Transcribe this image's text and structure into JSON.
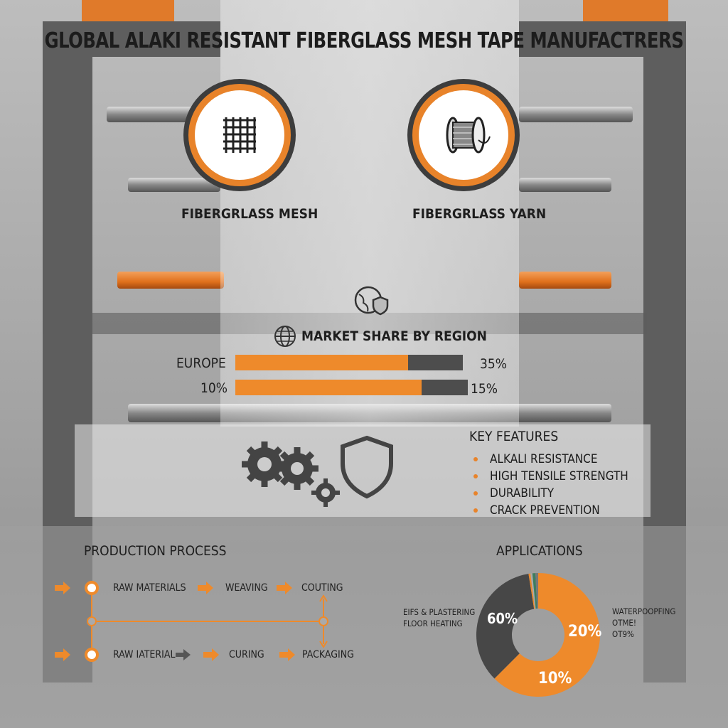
{
  "title": "GLOBAL ALAKI RESISTANT FIBERGLASS MESH TAPE MANUFACTRERS",
  "products": [
    {
      "label": "FIBERGRLASS MESH",
      "icon": "mesh-grid-icon"
    },
    {
      "label": "FIBERGRLASS YARN",
      "icon": "yarn-spool-icon"
    }
  ],
  "market": {
    "title": "MARKET SHARE BY REGION",
    "rows": [
      {
        "label": "EUROPE",
        "fill": 0.76,
        "value": "35%"
      },
      {
        "label": "10%",
        "fill": 0.8,
        "value": "15%"
      }
    ]
  },
  "features": {
    "title": "KEY FEATURES",
    "items": [
      "ALKALI RESISTANCE",
      "HIGH TENSILE STRENGTH",
      "DURABILITY",
      "CRACK PREVENTION"
    ]
  },
  "process": {
    "title": "PRODUCTION PROCESS",
    "row1": [
      "RAW MATERIALS",
      "WEAVING",
      "COUTING"
    ],
    "row2": [
      "RAW IATERIAL",
      "CURING",
      "PACKAGING"
    ]
  },
  "applications": {
    "title": "APPLICATIONS",
    "left_labels": [
      "EIFS & PLASTERING",
      "FLOOR HEATING"
    ],
    "right_labels": [
      "WATERPOOPFING",
      "OTME!",
      "OT9%"
    ],
    "slice_labels": [
      "60%",
      "20%",
      "10%"
    ],
    "colors": {
      "orange": "#ee8a2b",
      "dark": "#474747"
    }
  }
}
